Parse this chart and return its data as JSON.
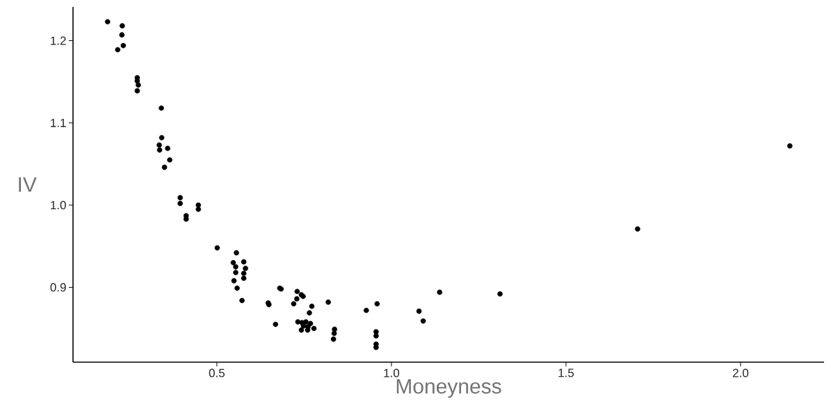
{
  "chart_data": {
    "type": "scatter",
    "xlabel": "Moneyness",
    "ylabel": "IV",
    "color": "#000000",
    "marker": "circle",
    "xlim": [
      0.088,
      2.239
    ],
    "ylim": [
      0.809,
      1.241
    ],
    "xticks": [
      0.5,
      {
        "value": 1.0,
        "label": "1.0"
      },
      1.5,
      {
        "value": 2.0,
        "label": "2.0"
      }
    ],
    "yticks": [
      0.9,
      {
        "value": 1.0,
        "label": "1.0"
      },
      1.1,
      1.2
    ],
    "x": [
      0.187,
      0.229,
      0.228,
      0.232,
      0.216,
      0.272,
      0.272,
      0.275,
      0.272,
      0.341,
      0.342,
      0.335,
      0.336,
      0.359,
      0.365,
      0.35,
      0.395,
      0.395,
      0.447,
      0.447,
      0.412,
      0.412,
      0.501,
      0.556,
      0.547,
      0.577,
      0.554,
      0.582,
      0.554,
      0.577,
      0.577,
      0.549,
      0.558,
      0.572,
      0.647,
      0.649,
      0.68,
      0.684,
      0.668,
      0.73,
      0.742,
      0.747,
      0.729,
      0.72,
      0.772,
      0.765,
      0.732,
      0.744,
      0.755,
      0.768,
      0.748,
      0.761,
      0.778,
      0.742,
      0.76,
      0.819,
      0.837,
      0.836,
      0.834,
      0.928,
      0.959,
      0.956,
      0.956,
      0.956,
      0.956,
      1.079,
      1.091,
      1.138,
      1.311,
      1.705,
      2.141
    ],
    "values": [
      1.223,
      1.218,
      1.207,
      1.194,
      1.189,
      1.155,
      1.151,
      1.146,
      1.139,
      1.118,
      1.082,
      1.073,
      1.067,
      1.069,
      1.055,
      1.046,
      1.009,
      1.002,
      1.0,
      0.995,
      0.987,
      0.983,
      0.948,
      0.942,
      0.93,
      0.931,
      0.925,
      0.923,
      0.918,
      0.917,
      0.911,
      0.908,
      0.899,
      0.884,
      0.881,
      0.879,
      0.899,
      0.898,
      0.855,
      0.895,
      0.891,
      0.889,
      0.886,
      0.88,
      0.877,
      0.869,
      0.858,
      0.857,
      0.858,
      0.856,
      0.853,
      0.852,
      0.85,
      0.848,
      0.848,
      0.882,
      0.849,
      0.844,
      0.837,
      0.872,
      0.88,
      0.846,
      0.841,
      0.831,
      0.827,
      0.871,
      0.859,
      0.894,
      0.892,
      0.971,
      1.072
    ]
  }
}
